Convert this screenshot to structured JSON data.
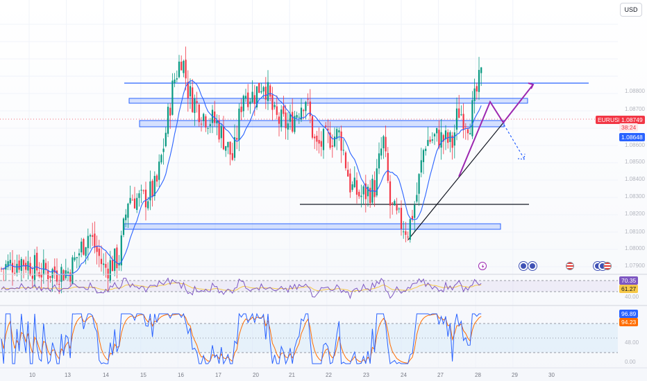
{
  "currency_button": "USD",
  "symbol": {
    "name": "EURUSD",
    "last_price": "1.08749",
    "countdown": "38:24",
    "ma_value": "1.08648"
  },
  "colors": {
    "up": "#089981",
    "down": "#f23645",
    "ma": "#2962ff",
    "drawing": "#2962ff",
    "projection": "#9c27b0",
    "symbol_badge": "#f23645",
    "ma_badge": "#2962ff"
  },
  "price_axis": {
    "ticks": [
      "1.08800",
      "1.08700",
      "1.08600",
      "1.08500",
      "1.08400",
      "1.08300",
      "1.08200",
      "1.08100",
      "1.08000",
      "1.07900"
    ]
  },
  "time_axis": {
    "ticks": [
      "10",
      "13",
      "14",
      "15",
      "16",
      "17",
      "20",
      "21",
      "22",
      "23",
      "24",
      "27",
      "28",
      "29",
      "30"
    ]
  },
  "rsi_panel": {
    "value_rsi": "70.35",
    "value_signal": "61.27",
    "level_label": "40.00"
  },
  "stoch_panel": {
    "value_k": "96.89",
    "value_d": "94.23",
    "mid_label": "48.00",
    "low_label": "0.00"
  },
  "event_icons": [
    "lightning-icon",
    "economic-event-icon",
    "economic-event-icon",
    "us-flag-icon",
    "economic-event-icon",
    "economic-event-icon",
    "us-flag-icon"
  ],
  "chart_data": {
    "type": "candlestick",
    "symbol": "EURUSD",
    "x": [
      "10",
      "13",
      "14",
      "15",
      "16",
      "17",
      "20",
      "21",
      "22",
      "23",
      "24",
      "27",
      "28"
    ],
    "close": [
      1.0791,
      1.079,
      1.08,
      1.0822,
      1.0869,
      1.0852,
      1.0866,
      1.0858,
      1.0846,
      1.083,
      1.0817,
      1.0848,
      1.0875
    ],
    "ylim": [
      1.0788,
      1.0902
    ],
    "indicators": [
      "Moving Average",
      "RSI",
      "Stochastic"
    ],
    "grid": true
  }
}
